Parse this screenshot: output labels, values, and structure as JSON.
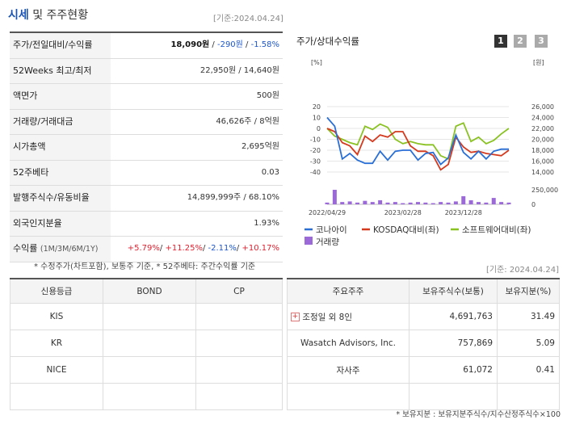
{
  "header": {
    "title_a": "시세",
    "title_b": "및 주주현황",
    "stamp": "[기준:2024.04.24]"
  },
  "info_rows": [
    {
      "label": "주가/전일대비/수익률",
      "price": "18,090원",
      "change": "-290원",
      "rate": "-1.58%"
    },
    {
      "label": "52Weeks 최고/최저",
      "value": "22,950원 / 14,640원"
    },
    {
      "label": "액면가",
      "value": "500원"
    },
    {
      "label": "거래량/거래대금",
      "value": "46,626주 / 8억원"
    },
    {
      "label": "시가총액",
      "value": "2,695억원"
    },
    {
      "label": "52주베타",
      "value": "0.03"
    },
    {
      "label": "발행주식수/유동비율",
      "value": "14,899,999주 / 68.10%"
    },
    {
      "label": "외국인지분율",
      "value": "1.93%"
    },
    {
      "label": "수익률",
      "label_sub": "(1M/3M/6M/1Y)",
      "r1": "+5.79%",
      "r2": "+11.25%",
      "r3": "-2.11%",
      "r4": "+10.17%"
    }
  ],
  "note_left": "* 수정주가(차트포함), 보통주 기준, * 52주베타: 주간수익률 기준",
  "chart": {
    "title": "주가/상대수익률",
    "tabs": [
      "1",
      "2",
      "3"
    ],
    "left_unit": "[%]",
    "right_unit": "[원]",
    "legend": [
      "코나아이",
      "KOSDAQ대비(좌)",
      "소프트웨어대비(좌)",
      "거래량"
    ],
    "colors": {
      "kona": "#2a6fd6",
      "kosdaq": "#d43a1e",
      "sw": "#8ac223",
      "vol": "#9c6ad8"
    }
  },
  "chart_data": {
    "type": "line",
    "x_ticks": [
      "2022/04/29",
      "2023/02/28",
      "2023/12/28"
    ],
    "yleft_ticks": [
      "20",
      "10",
      "0",
      "-10",
      "-20",
      "-30",
      "-40"
    ],
    "yleft_range": [
      -40,
      20
    ],
    "yright_ticks": [
      "26,000",
      "24,000",
      "22,000",
      "20,000",
      "18,000",
      "16,000",
      "14,000"
    ],
    "yright_range": [
      14000,
      26000
    ],
    "vol_ticks": [
      "250,000",
      "0"
    ],
    "vol_range": [
      0,
      250000
    ],
    "series": [
      {
        "name": "코나아이",
        "values": [
          10,
          2,
          -28,
          -23,
          -29,
          -32,
          -32,
          -21,
          -29,
          -21,
          -20,
          -20,
          -29,
          -23,
          -22,
          -33,
          -27,
          -6,
          -22,
          -28,
          -21,
          -28,
          -21,
          -19,
          -19
        ]
      },
      {
        "name": "KOSDAQ대비(좌)",
        "values": [
          0,
          -3,
          -13,
          -16,
          -24,
          -7,
          -12,
          -6,
          -8,
          -3,
          -3,
          -16,
          -21,
          -21,
          -25,
          -38,
          -33,
          -8,
          -17,
          -22,
          -21,
          -23,
          -24,
          -25,
          -20
        ]
      },
      {
        "name": "소프트웨어대비(좌)",
        "values": [
          0,
          -7,
          -10,
          -13,
          -15,
          2,
          -1,
          4,
          1,
          -10,
          -14,
          -12,
          -14,
          -15,
          -15,
          -25,
          -28,
          2,
          5,
          -12,
          -8,
          -14,
          -11,
          -5,
          0
        ]
      },
      {
        "name": "거래량",
        "values": [
          30000,
          250000,
          40000,
          50000,
          30000,
          60000,
          40000,
          70000,
          30000,
          40000,
          20000,
          30000,
          40000,
          30000,
          20000,
          40000,
          30000,
          50000,
          140000,
          70000,
          40000,
          30000,
          110000,
          40000,
          30000
        ]
      }
    ]
  },
  "stamp2": "[기준: 2024.04.24]",
  "credit": {
    "headers": [
      "신용등급",
      "BOND",
      "CP"
    ],
    "rows": [
      [
        "KIS",
        "",
        ""
      ],
      [
        "KR",
        "",
        ""
      ],
      [
        "NICE",
        "",
        ""
      ],
      [
        "",
        "",
        ""
      ]
    ]
  },
  "holders": {
    "headers": [
      "주요주주",
      "보유주식수(보통)",
      "보유지분(%)"
    ],
    "rows": [
      [
        "조정일 외 8인",
        "4,691,763",
        "31.49"
      ],
      [
        "Wasatch Advisors, Inc.",
        "757,869",
        "5.09"
      ],
      [
        "자사주",
        "61,072",
        "0.41"
      ],
      [
        "",
        "",
        ""
      ]
    ]
  },
  "note_right": "* 보유지분 : 보유지분주식수/지수산정주식수×100"
}
